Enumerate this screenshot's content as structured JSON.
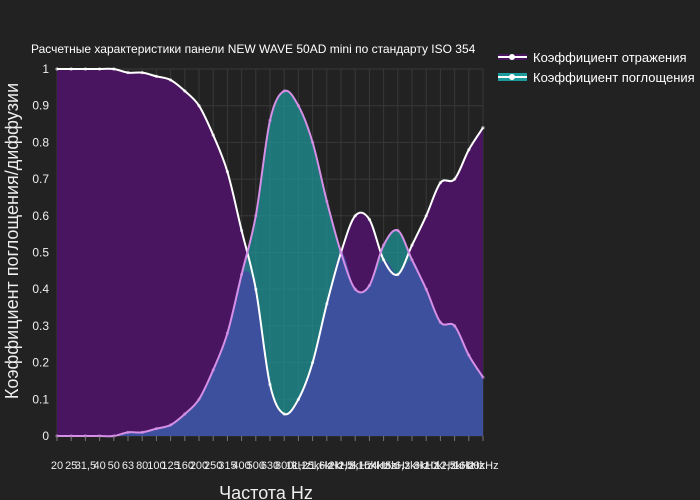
{
  "chart_data": {
    "type": "area",
    "title": "Расчетные характеристики панели NEW WAVE 50AD mini по стандарту ISO 354",
    "xlabel": "Частота Hz",
    "ylabel": "Коэффициент поглощения/диффузии",
    "ylim": [
      0,
      1
    ],
    "yticks": [
      "0",
      "0.1",
      "0.2",
      "0.3",
      "0.4",
      "0.5",
      "0.6",
      "0.7",
      "0.8",
      "0.9",
      "1"
    ],
    "categories": [
      "20",
      "25",
      "31,5",
      "40",
      "50",
      "63",
      "80",
      "100",
      "125",
      "160",
      "200",
      "250",
      "315",
      "400",
      "500",
      "630",
      "800",
      "1kHz",
      "1,25kHz",
      "1,6kHz",
      "2kHz",
      "2,5kHz",
      "3,15kHz",
      "4kHz",
      "5kHz",
      "6,3kHz",
      "8kHz",
      "10kHz",
      "12,5kHz",
      "16kHz",
      "20kHz"
    ],
    "series": [
      {
        "name": "Коэффициент отражения",
        "color": "#ffffff",
        "fill": "#4a1560",
        "values": [
          1.0,
          1.0,
          1.0,
          1.0,
          1.0,
          0.99,
          0.99,
          0.98,
          0.97,
          0.94,
          0.9,
          0.82,
          0.72,
          0.56,
          0.4,
          0.14,
          0.06,
          0.1,
          0.2,
          0.36,
          0.5,
          0.6,
          0.59,
          0.48,
          0.44,
          0.52,
          0.6,
          0.69,
          0.7,
          0.78,
          0.84
        ]
      },
      {
        "name": "Коэффициент поглощения",
        "color": "#d58fe6",
        "fill": "#1c9a9c",
        "values": [
          0.0,
          0.0,
          0.0,
          0.0,
          0.0,
          0.01,
          0.01,
          0.02,
          0.03,
          0.06,
          0.1,
          0.18,
          0.28,
          0.44,
          0.6,
          0.86,
          0.94,
          0.9,
          0.8,
          0.64,
          0.5,
          0.4,
          0.41,
          0.52,
          0.56,
          0.48,
          0.4,
          0.31,
          0.3,
          0.22,
          0.16
        ]
      }
    ],
    "legend_position": "top-right",
    "grid": true,
    "colors": {
      "background": "#222222",
      "grid": "#383838",
      "overlap": "#3f4aa0"
    }
  }
}
